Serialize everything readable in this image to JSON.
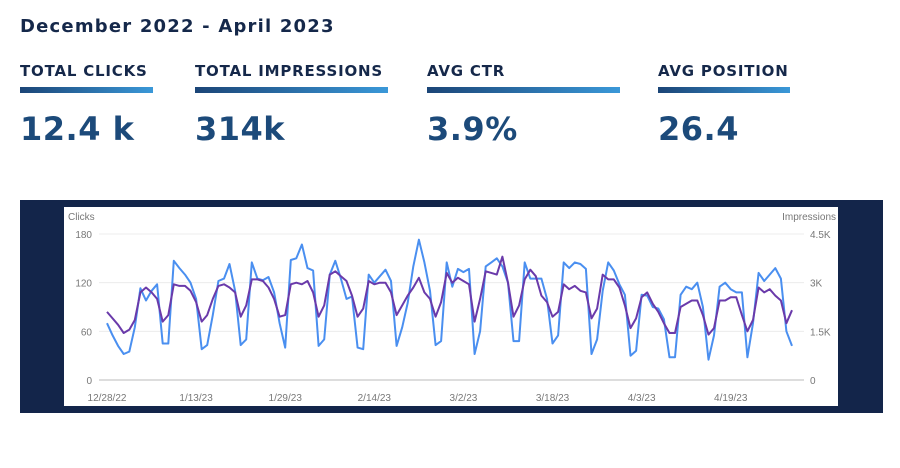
{
  "header": {
    "title": "December 2022 - April 2023"
  },
  "kpis": [
    {
      "label": "TOTAL CLICKS",
      "value": "12.4 k"
    },
    {
      "label": "TOTAL IMPRESSIONS",
      "value": "314k"
    },
    {
      "label": "AVG CTR",
      "value": "3.9%"
    },
    {
      "label": "AVG POSITION",
      "value": "26.4"
    }
  ],
  "colors": {
    "title": "#15284a",
    "value": "#1c4a7a",
    "panel": "#13254a",
    "clicks": "#4a8ff0",
    "impressions": "#6a3aaa"
  },
  "chart_data": {
    "type": "line",
    "x_start": "2022-12-28",
    "x_interval": "daily",
    "x_ticks": [
      "12/28/22",
      "1/13/23",
      "1/29/23",
      "2/14/23",
      "3/2/23",
      "3/18/23",
      "4/3/23",
      "4/19/23"
    ],
    "ylabel_left": "Clicks",
    "ylabel_right": "Impressions",
    "y_left_ticks": [
      "0",
      "60",
      "120",
      "180"
    ],
    "y_right_ticks": [
      "0",
      "1.5K",
      "3K",
      "4.5K"
    ],
    "ylim_left": [
      0,
      180
    ],
    "ylim_right": [
      0,
      4500
    ],
    "grid": true,
    "series": [
      {
        "axis": "left",
        "color": "#4a8ff0",
        "values": [
          70,
          55,
          42,
          32,
          35,
          65,
          113,
          98,
          110,
          118,
          45,
          45,
          147,
          138,
          130,
          120,
          100,
          38,
          43,
          80,
          122,
          125,
          143,
          110,
          43,
          50,
          145,
          125,
          123,
          127,
          108,
          70,
          40,
          148,
          150,
          167,
          138,
          135,
          42,
          50,
          130,
          147,
          125,
          100,
          103,
          40,
          38,
          130,
          120,
          128,
          136,
          122,
          42,
          65,
          95,
          140,
          173,
          145,
          110,
          43,
          48,
          145,
          115,
          137,
          133,
          137,
          32,
          60,
          140,
          145,
          150,
          140,
          120,
          48,
          48,
          145,
          125,
          125,
          125,
          100,
          45,
          55,
          145,
          138,
          145,
          143,
          137,
          32,
          50,
          110,
          145,
          135,
          118,
          105,
          30,
          36,
          105,
          104,
          90,
          88,
          75,
          28,
          28,
          105,
          115,
          112,
          120,
          90,
          25,
          55,
          115,
          120,
          112,
          108,
          108,
          28,
          70,
          132,
          122,
          130,
          138,
          125,
          60,
          42
        ]
      },
      {
        "axis": "right",
        "color": "#6a3aaa",
        "values": [
          2100,
          1900,
          1700,
          1450,
          1550,
          1850,
          2700,
          2850,
          2700,
          2500,
          1800,
          2000,
          2950,
          2900,
          2900,
          2750,
          2400,
          1800,
          2000,
          2500,
          2900,
          2950,
          2850,
          2700,
          1950,
          2300,
          3100,
          3100,
          3050,
          2850,
          2500,
          1950,
          2000,
          2950,
          3000,
          2950,
          3050,
          2700,
          1950,
          2300,
          3250,
          3350,
          3200,
          3050,
          2600,
          1950,
          2200,
          3050,
          2950,
          3000,
          3000,
          2700,
          2000,
          2300,
          2600,
          2850,
          3150,
          2700,
          2500,
          1950,
          2400,
          3300,
          3000,
          3150,
          3050,
          2950,
          1800,
          2500,
          3350,
          3300,
          3250,
          3800,
          3000,
          1950,
          2300,
          3100,
          3400,
          3200,
          2600,
          2400,
          1950,
          2100,
          2950,
          2800,
          2900,
          2750,
          2700,
          1900,
          2200,
          3250,
          3100,
          3100,
          2850,
          2300,
          1600,
          1900,
          2550,
          2700,
          2350,
          2100,
          1750,
          1450,
          1450,
          2250,
          2350,
          2450,
          2450,
          2000,
          1400,
          1600,
          2450,
          2450,
          2550,
          2550,
          2000,
          1500,
          1850,
          2850,
          2700,
          2800,
          2600,
          2450,
          1750,
          2150
        ]
      }
    ]
  }
}
